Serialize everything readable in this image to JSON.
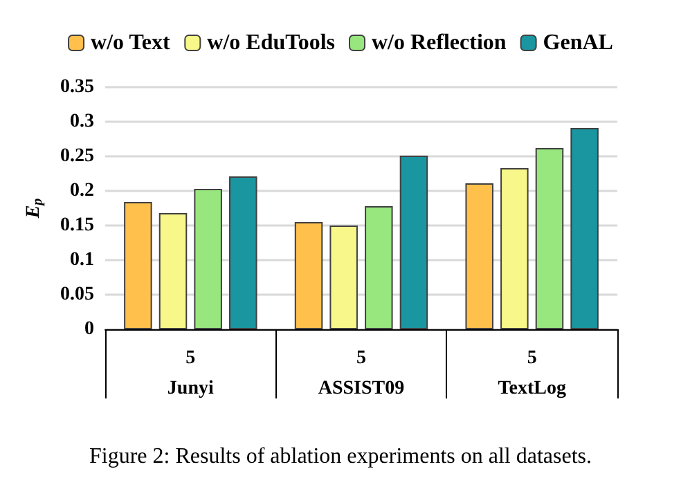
{
  "chart_data": {
    "type": "bar",
    "ylabel": "E$_{p}$",
    "categories": [
      "5\nJunyi",
      "5\nASSIST09",
      "5\nTextLog"
    ],
    "series": [
      {
        "name": "w/o Text",
        "color": "#ffc04c",
        "values": [
          0.184,
          0.155,
          0.211
        ]
      },
      {
        "name": "w/o EduTools",
        "color": "#f8f88a",
        "values": [
          0.168,
          0.15,
          0.233
        ]
      },
      {
        "name": "w/o Reflection",
        "color": "#98e67e",
        "values": [
          0.203,
          0.178,
          0.262
        ]
      },
      {
        "name": "GenAL",
        "color": "#1a96a0",
        "values": [
          0.221,
          0.251,
          0.291
        ]
      }
    ],
    "ylim": [
      0,
      0.35
    ],
    "yticks": [
      0,
      0.05,
      0.1,
      0.15,
      0.2,
      0.25,
      0.3,
      0.35
    ],
    "grid": "y",
    "legend": "top",
    "annotations": [
      "Figure 2: Results of ablation experiments on all datasets."
    ]
  }
}
